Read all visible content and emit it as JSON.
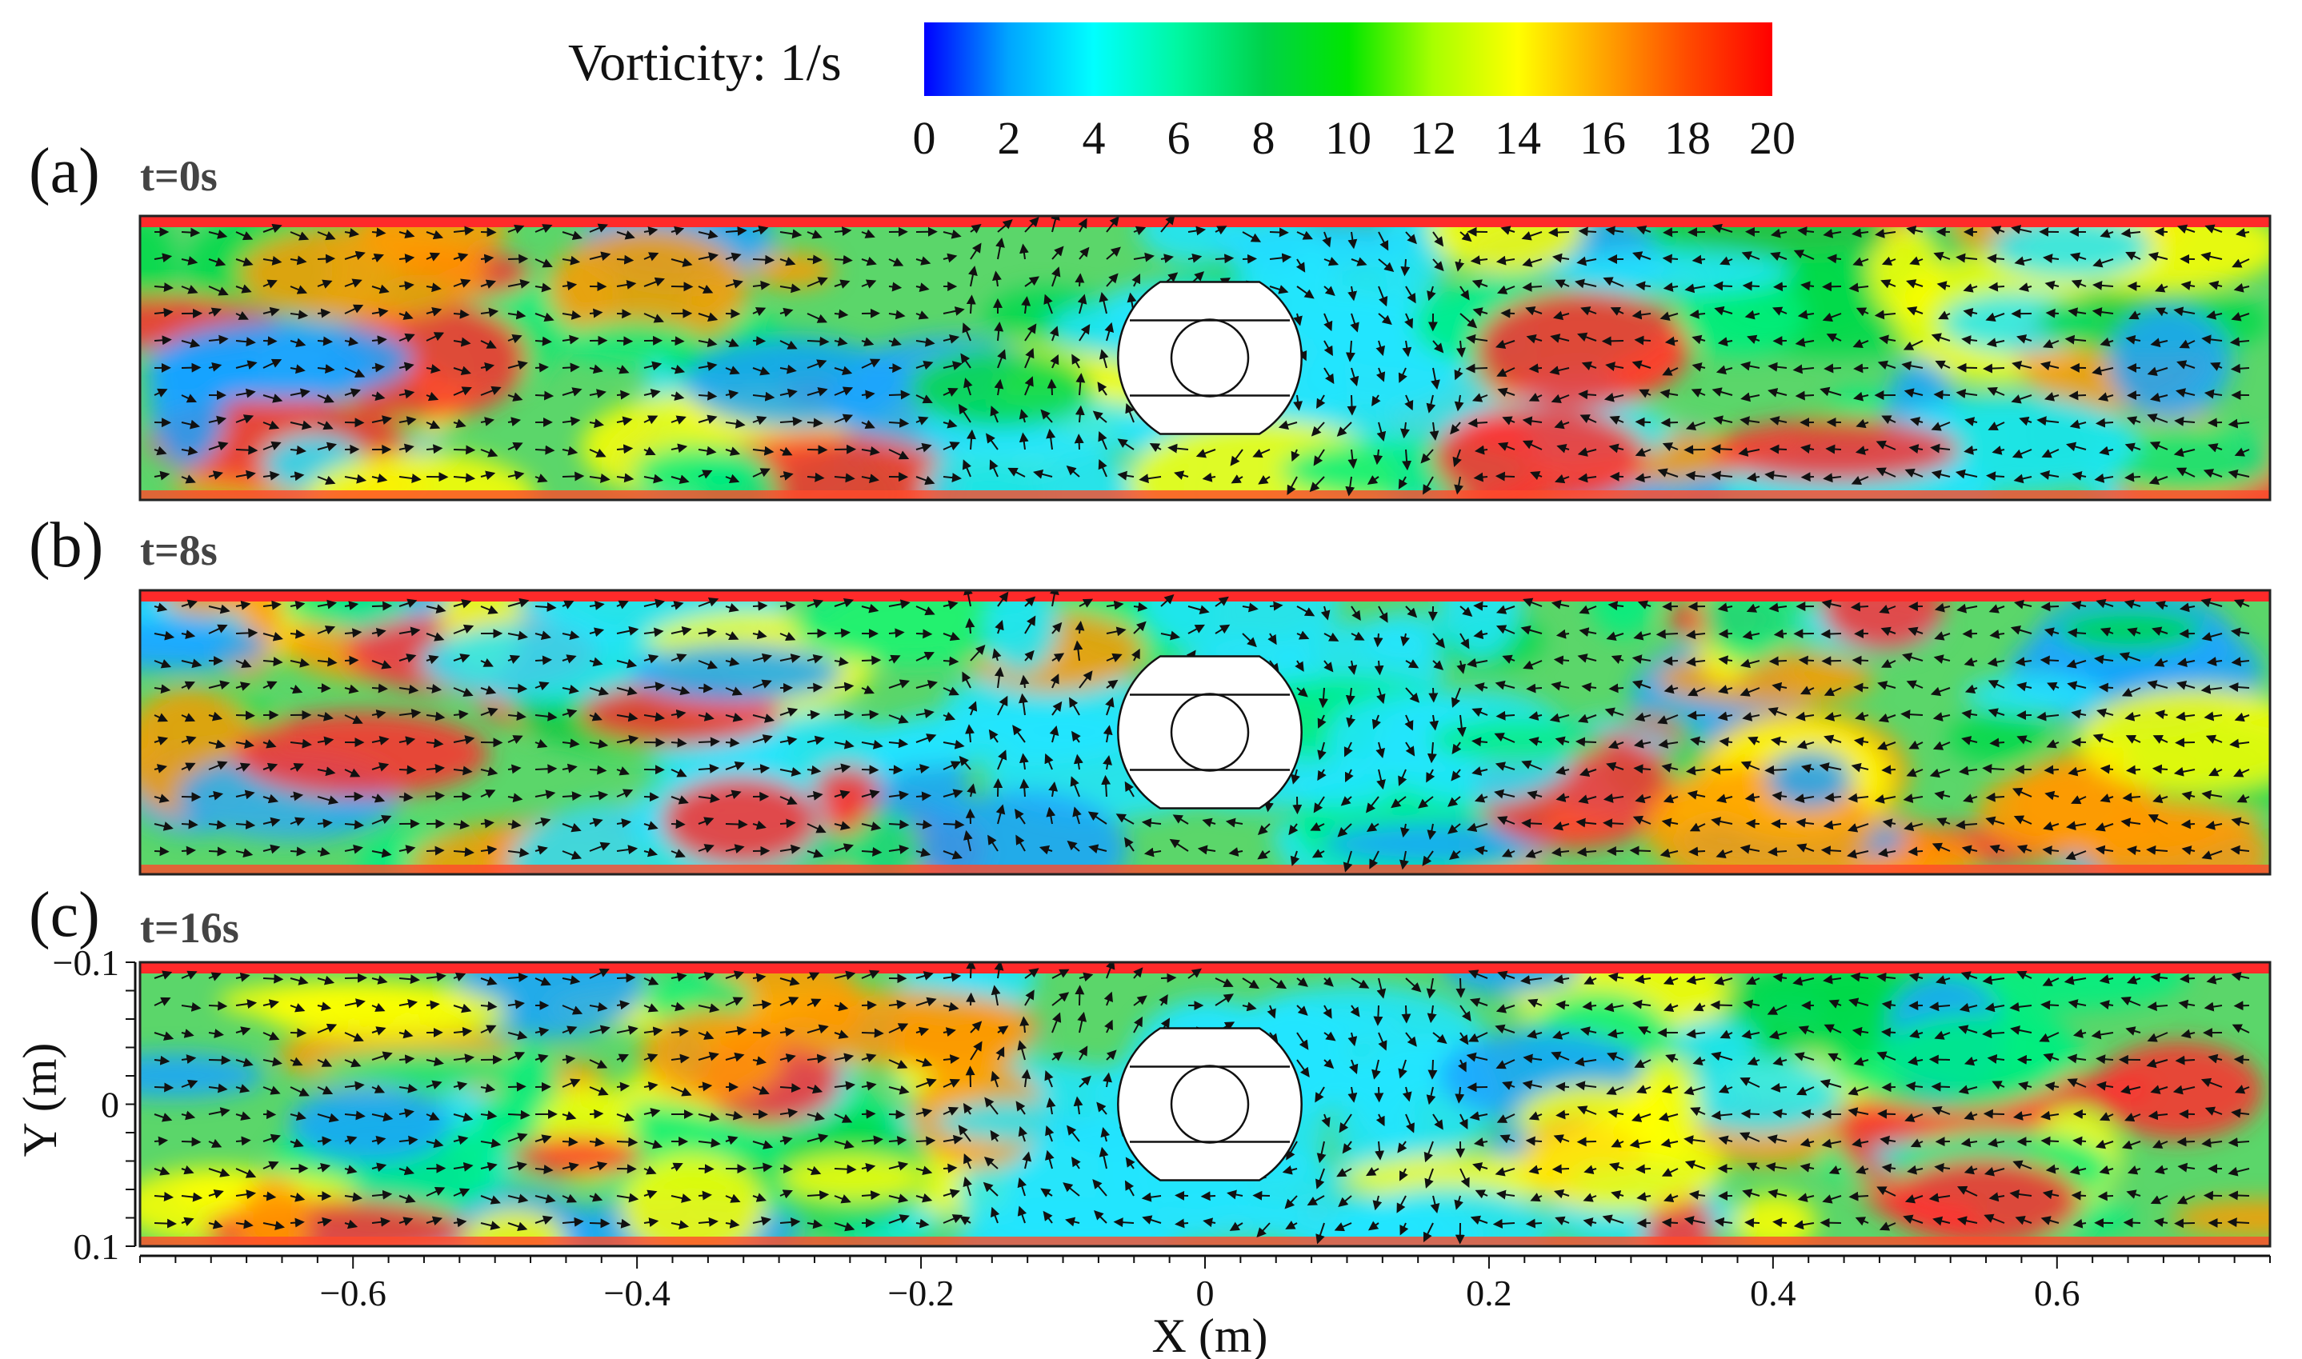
{
  "chart_data": {
    "type": "heatmap",
    "title": "",
    "colorbar": {
      "label": "Vorticity: 1/s",
      "ticks": [
        "0",
        "2",
        "4",
        "6",
        "8",
        "10",
        "12",
        "14",
        "16",
        "18",
        "20"
      ],
      "range": [
        0,
        20
      ],
      "colors": [
        "#0000ff",
        "#00a6ff",
        "#00ffff",
        "#00f7a0",
        "#00d24a",
        "#00e600",
        "#a8ff00",
        "#ffff00",
        "#ffa500",
        "#ff4b00",
        "#ff0000"
      ]
    },
    "panels": [
      {
        "letter": "(a)",
        "time": "t=0s"
      },
      {
        "letter": "(b)",
        "time": "t=8s"
      },
      {
        "letter": "(c)",
        "time": "t=16s"
      }
    ],
    "x_axis": {
      "label": "X (m)",
      "range": [
        -0.75,
        0.75
      ],
      "ticks": [
        {
          "value": -0.6,
          "label": "−0.6"
        },
        {
          "value": -0.4,
          "label": "−0.4"
        },
        {
          "value": -0.2,
          "label": "−0.2"
        },
        {
          "value": 0,
          "label": "0"
        },
        {
          "value": 0.2,
          "label": "0.2"
        },
        {
          "value": 0.4,
          "label": "0.4"
        },
        {
          "value": 0.6,
          "label": "0.6"
        }
      ]
    },
    "y_axis": {
      "label": "Y (m)",
      "range": [
        -0.1,
        0.1
      ],
      "ticks": [
        {
          "value": -0.1,
          "label": "−0.1"
        },
        {
          "value": 0,
          "label": "0"
        },
        {
          "value": 0.1,
          "label": "0.1"
        }
      ]
    },
    "obstacle": {
      "shape": "circular cylinder with flat top/bottom",
      "center_x": 0,
      "center_y": 0
    }
  }
}
